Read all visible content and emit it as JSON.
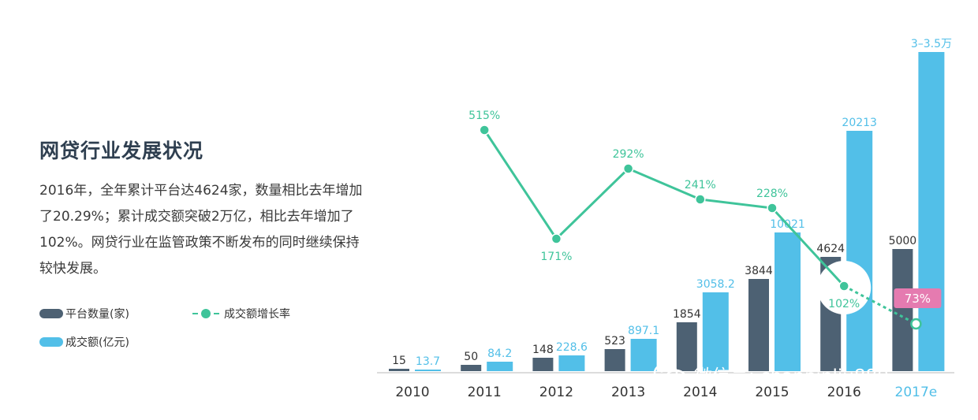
{
  "header": {
    "title": "网贷行业发展状况",
    "description": "2016年，全年累计平台达4624家，数量相比去年增加了20.29%；累计成交额突破2万亿，相比去年增加了102%。网贷行业在监管政策不断发布的同时继续保持较快发展。"
  },
  "legend": {
    "platforms": "平台数量(家)",
    "growth": "成交额增长率",
    "volume": "成交额(亿元)"
  },
  "watermark": {
    "text": "微信号: chanpinliu880",
    "icon": "wechat-icon"
  },
  "colors": {
    "platforms": "#4d6173",
    "volume": "#52bfe8",
    "growth": "#3fc49a",
    "highlight": "#e57bb0"
  },
  "chart_data": {
    "type": "bar",
    "categories": [
      "2010",
      "2011",
      "2012",
      "2013",
      "2014",
      "2015",
      "2016",
      "2017e"
    ],
    "series": [
      {
        "name": "平台数量(家)",
        "values": [
          15,
          50,
          148,
          523,
          1854,
          3844,
          4624,
          5000
        ],
        "labels": [
          "15",
          "50",
          "148",
          "523",
          "1854",
          "3844",
          "4624",
          "5000"
        ]
      },
      {
        "name": "成交额(亿元)",
        "values": [
          13.7,
          84.2,
          228.6,
          897.1,
          3058.2,
          10021,
          20213,
          35000
        ],
        "labels": [
          "13.7",
          "84.2",
          "228.6",
          "897.1",
          "3058.2",
          "10021",
          "20213",
          "3–3.5万"
        ]
      }
    ],
    "line_series": {
      "name": "成交额增长率",
      "categories": [
        "2011",
        "2012",
        "2013",
        "2014",
        "2015",
        "2016",
        "2017e"
      ],
      "values": [
        515,
        171,
        292,
        241,
        228,
        102,
        73
      ],
      "labels": [
        "515%",
        "171%",
        "292%",
        "241%",
        "228%",
        "102%",
        "73%"
      ]
    }
  }
}
